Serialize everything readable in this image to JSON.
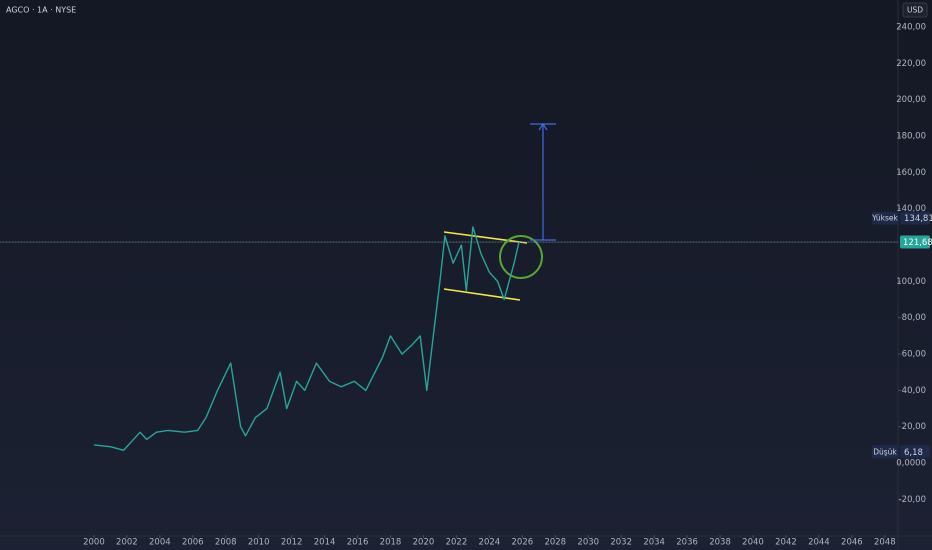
{
  "chart_data": {
    "type": "line",
    "title": "AGCO · 1A · NYSE",
    "currency": "USD",
    "series": [
      {
        "name": "AGCO",
        "color": "#26a69a",
        "x": [
          2000.0,
          2001.0,
          2001.8,
          2002.3,
          2002.8,
          2003.2,
          2003.8,
          2004.5,
          2005.5,
          2006.3,
          2006.8,
          2007.5,
          2008.3,
          2008.9,
          2009.2,
          2009.8,
          2010.5,
          2011.3,
          2011.7,
          2012.3,
          2012.8,
          2013.5,
          2014.3,
          2015.0,
          2015.8,
          2016.5,
          2017.5,
          2018.0,
          2018.7,
          2019.3,
          2019.8,
          2020.2,
          2020.6,
          2021.0,
          2021.3,
          2021.8,
          2022.3,
          2022.6,
          2023.0,
          2023.5,
          2024.0,
          2024.5,
          2024.9,
          2025.2,
          2025.5,
          2025.8
        ],
        "values": [
          10,
          9,
          7,
          12,
          17,
          13,
          17,
          18,
          17,
          18,
          25,
          40,
          55,
          20,
          15,
          25,
          30,
          50,
          30,
          45,
          40,
          55,
          45,
          42,
          45,
          40,
          58,
          70,
          60,
          65,
          70,
          40,
          70,
          100,
          125,
          110,
          120,
          95,
          130,
          115,
          105,
          100,
          90,
          100,
          110,
          121.68
        ]
      }
    ],
    "xlim": [
      1994.3,
      2048.8
    ],
    "xticks": [
      2000,
      2002,
      2004,
      2006,
      2008,
      2010,
      2012,
      2014,
      2016,
      2018,
      2020,
      2022,
      2024,
      2026,
      2028,
      2030,
      2032,
      2034,
      2036,
      2038,
      2040,
      2042,
      2044,
      2046,
      2048
    ],
    "ylim": [
      -39.6,
      254.9
    ],
    "yticks": [
      {
        "value": 240,
        "label": "240,00"
      },
      {
        "value": 220,
        "label": "220,00"
      },
      {
        "value": 200,
        "label": "200,00"
      },
      {
        "value": 180,
        "label": "180,00"
      },
      {
        "value": 160,
        "label": "160,00"
      },
      {
        "value": 140,
        "label": "140,00"
      },
      {
        "value": 100,
        "label": "100,00"
      },
      {
        "value": 80,
        "label": "80,00"
      },
      {
        "value": 60,
        "label": "60,00"
      },
      {
        "value": 40,
        "label": "40,00"
      },
      {
        "value": 20,
        "label": "20,00"
      },
      {
        "value": 0,
        "label": "0,0000"
      },
      {
        "value": -20,
        "label": "-20,00"
      }
    ],
    "price_labels": [
      {
        "name": "Yüksek",
        "value": 134.81,
        "label": "134,81"
      },
      {
        "name": "Düşük",
        "value": 6.18,
        "label": "6,18"
      }
    ],
    "last_price": {
      "value": 121.68,
      "label": "121,68",
      "color": "#26a69a"
    },
    "grid": false
  }
}
